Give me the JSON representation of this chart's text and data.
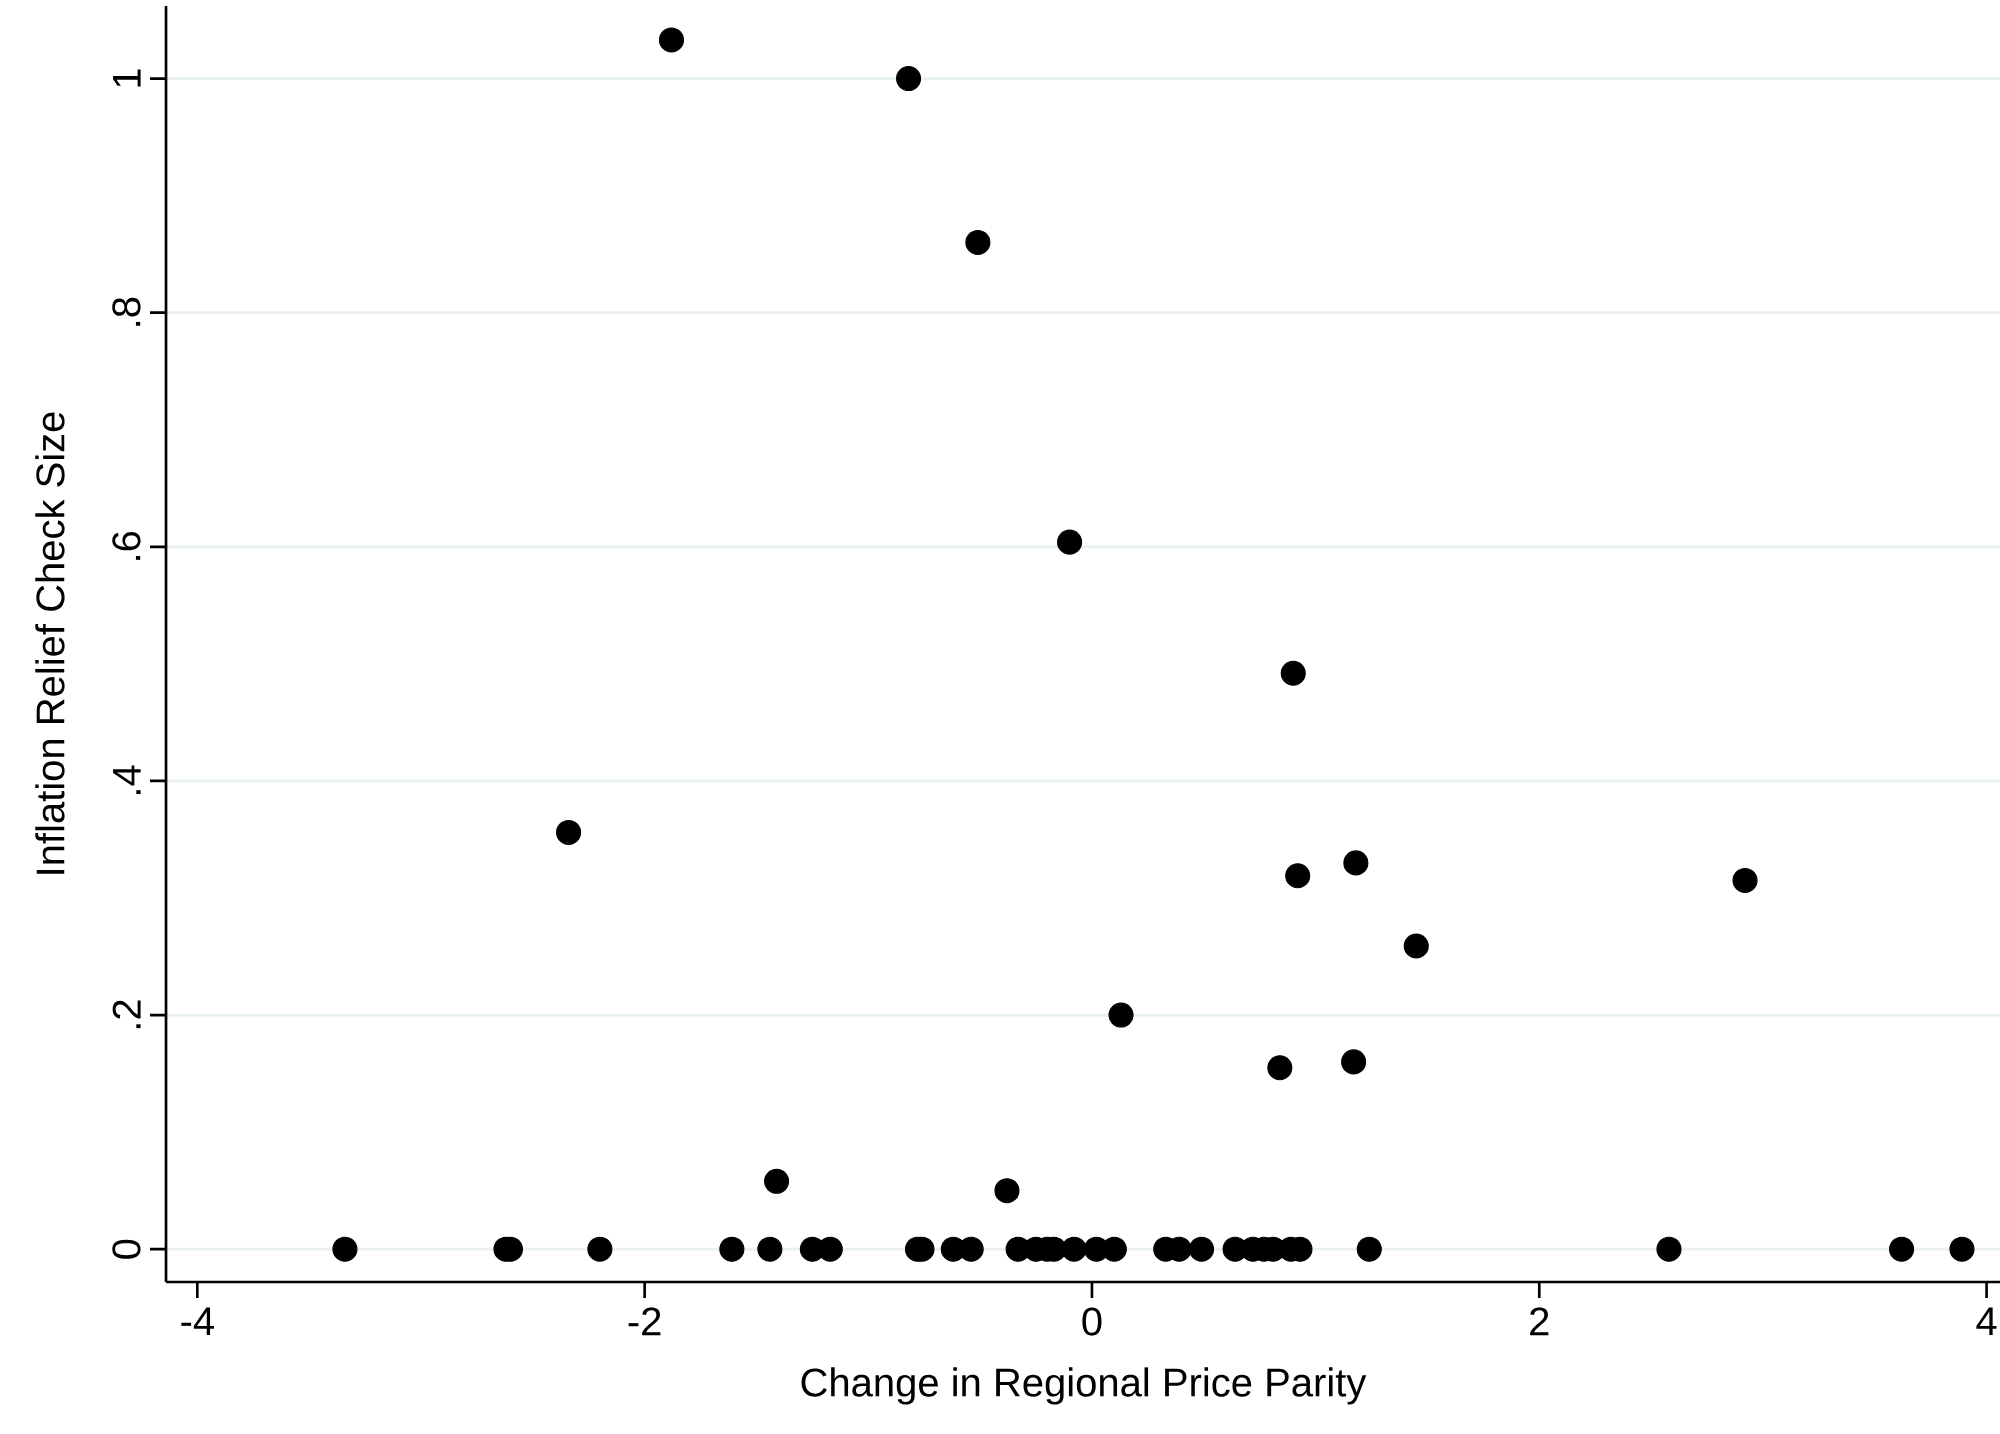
{
  "chart_data": {
    "type": "scatter",
    "xlabel": "Change in Regional Price Parity",
    "ylabel": "Inflation Relief Check Size",
    "x": [
      -3.34,
      -2.62,
      -2.6,
      -2.2,
      -1.61,
      -1.44,
      -1.25,
      -1.17,
      -0.78,
      -0.76,
      -0.62,
      -0.54,
      -0.33,
      -0.25,
      -0.2,
      -0.17,
      -0.08,
      0.02,
      0.1,
      0.33,
      0.39,
      0.49,
      0.64,
      0.72,
      0.77,
      0.81,
      0.89,
      0.93,
      1.24,
      2.58,
      3.62,
      3.89,
      -1.88,
      -0.82,
      -0.51,
      -0.1,
      0.9,
      -2.34,
      0.92,
      1.18,
      1.45,
      2.92,
      0.13,
      0.84,
      1.17,
      -1.41,
      -0.38
    ],
    "series": [
      {
        "color": "#000000",
        "values": [
          0,
          0,
          0,
          0,
          0,
          0,
          0,
          0,
          0,
          0,
          0,
          0,
          0,
          0,
          0,
          0,
          0,
          0,
          0,
          0,
          0,
          0,
          0,
          0,
          0,
          0,
          0,
          0,
          0,
          0,
          0,
          0,
          1.033,
          1.0,
          0.86,
          0.604,
          0.492,
          0.356,
          0.319,
          0.33,
          0.259,
          0.315,
          0.2,
          0.155,
          0.16,
          0.058,
          0.05
        ]
      }
    ],
    "xlim": [
      -4.14,
      4.06
    ],
    "ylim": [
      -0.028,
      1.062
    ],
    "xticks": [
      -4,
      -2,
      0,
      2,
      4
    ],
    "yticks": [
      0,
      {
        "value": 0.2,
        "label": ".2"
      },
      {
        "value": 0.4,
        "label": ".4"
      },
      {
        "value": 0.6,
        "label": ".6"
      },
      {
        "value": 0.8,
        "label": ".8"
      },
      1
    ],
    "grid": "y",
    "marker": "circle"
  }
}
